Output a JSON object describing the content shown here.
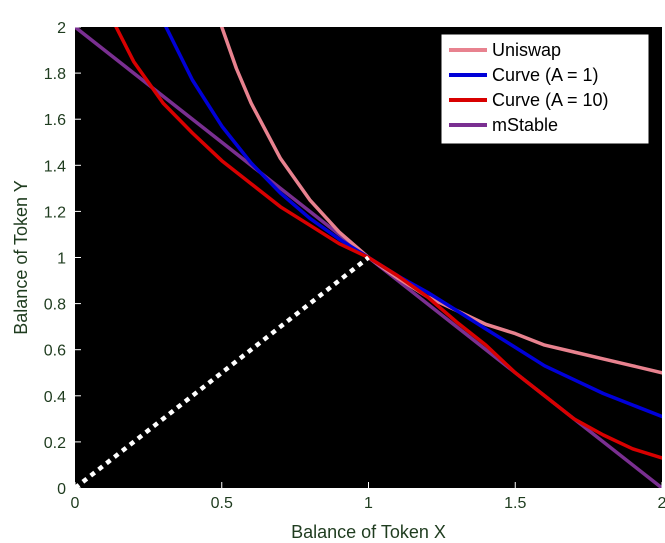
{
  "chart_data": {
    "type": "line",
    "title": "",
    "xlabel": "Balance of Token X",
    "ylabel": "Balance of Token Y",
    "xlim": [
      0,
      2
    ],
    "ylim": [
      0,
      2
    ],
    "x_ticks": [
      "0",
      "0.5",
      "1",
      "1.5",
      "2"
    ],
    "y_ticks": [
      "0",
      "0.2",
      "0.4",
      "0.6",
      "0.8",
      "1",
      "1.2",
      "1.4",
      "1.6",
      "1.8",
      "2"
    ],
    "grid": false,
    "background": "#000000",
    "legend_position": "top-right",
    "series": [
      {
        "name": "Uniswap",
        "color": "#e8828f",
        "x": [
          0.5,
          0.55,
          0.6,
          0.7,
          0.8,
          0.9,
          1.0,
          1.1,
          1.2,
          1.3,
          1.4,
          1.5,
          1.6,
          1.7,
          1.8,
          1.9,
          2.0
        ],
        "y": [
          2.0,
          1.82,
          1.67,
          1.43,
          1.25,
          1.11,
          1.0,
          0.91,
          0.83,
          0.77,
          0.71,
          0.67,
          0.62,
          0.59,
          0.56,
          0.53,
          0.5
        ]
      },
      {
        "name": "Curve (A = 1)",
        "color": "#0000d8",
        "x": [
          0.31,
          0.4,
          0.5,
          0.6,
          0.7,
          0.8,
          0.9,
          1.0,
          1.1,
          1.2,
          1.3,
          1.4,
          1.5,
          1.6,
          1.7,
          1.8,
          1.9,
          2.0
        ],
        "y": [
          2.0,
          1.77,
          1.57,
          1.41,
          1.28,
          1.17,
          1.08,
          1.0,
          0.92,
          0.85,
          0.77,
          0.69,
          0.61,
          0.53,
          0.47,
          0.41,
          0.36,
          0.31
        ]
      },
      {
        "name": "Curve (A = 10)",
        "color": "#d80000",
        "x": [
          0.14,
          0.2,
          0.3,
          0.4,
          0.5,
          0.6,
          0.7,
          0.8,
          0.9,
          1.0,
          1.1,
          1.2,
          1.3,
          1.4,
          1.5,
          1.6,
          1.7,
          1.8,
          1.9,
          2.0
        ],
        "y": [
          2.0,
          1.85,
          1.67,
          1.54,
          1.42,
          1.32,
          1.22,
          1.14,
          1.06,
          1.0,
          0.92,
          0.83,
          0.72,
          0.62,
          0.5,
          0.4,
          0.3,
          0.23,
          0.17,
          0.13
        ]
      },
      {
        "name": "mStable",
        "color": "#7a2f91",
        "x": [
          0,
          2
        ],
        "y": [
          2,
          0
        ]
      },
      {
        "name": "",
        "color": "#ffffff",
        "dashed": true,
        "x": [
          0,
          1
        ],
        "y": [
          0,
          1
        ]
      }
    ]
  }
}
